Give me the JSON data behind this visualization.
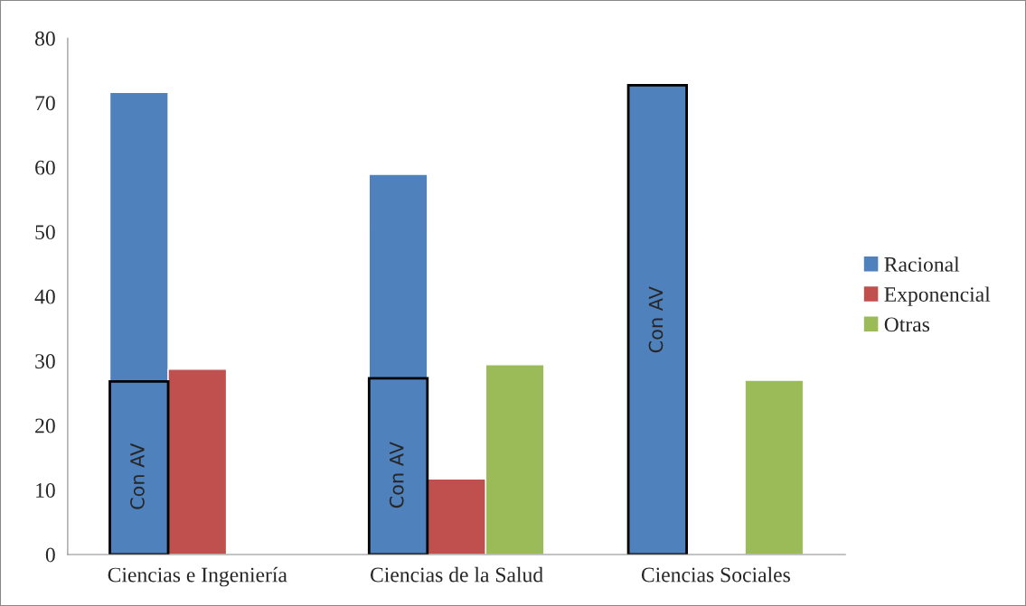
{
  "chart_data": {
    "type": "bar",
    "categories": [
      "Ciencias e Ingeniería",
      "Ciencias de la Salud",
      "Ciencias Sociales"
    ],
    "series": [
      {
        "name": "Racional",
        "color": "#4f81bd",
        "values": [
          71.6,
          58.9,
          72.9
        ]
      },
      {
        "name": "Exponencial",
        "color": "#c0504d",
        "values": [
          28.7,
          11.7,
          null
        ]
      },
      {
        "name": "Otras",
        "color": "#9bbb59",
        "values": [
          null,
          29.4,
          27.0
        ]
      },
      {
        "color": "#000000",
        "values": [
          26.8,
          27.3,
          72.7
        ],
        "value_labels": [
          "Con AV",
          "Con AV",
          "Con AV"
        ]
      }
    ],
    "ylim": [
      0,
      80
    ],
    "yticks": [
      0,
      10,
      20,
      30,
      40,
      50,
      60,
      70,
      80
    ],
    "grid": false,
    "legend": "right"
  }
}
